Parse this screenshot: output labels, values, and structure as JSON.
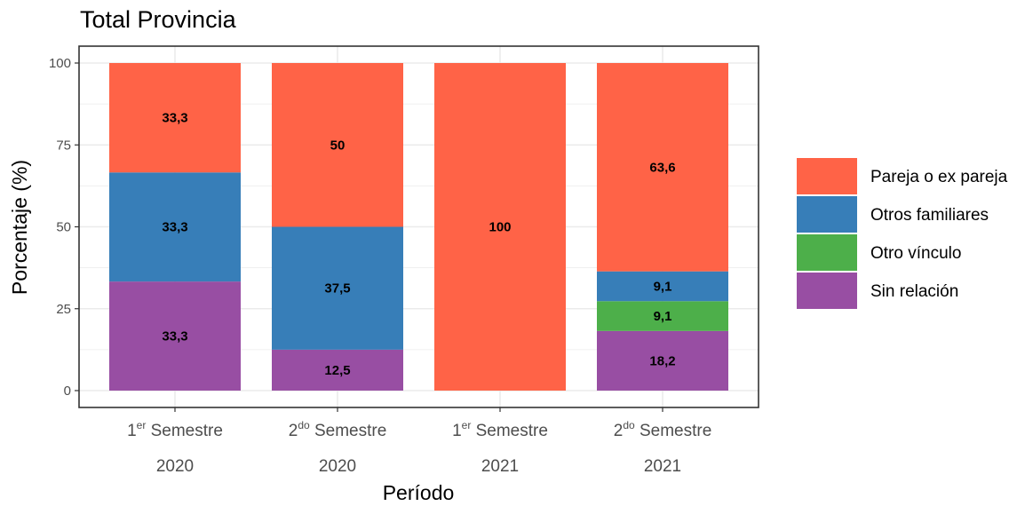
{
  "chart_data": {
    "type": "bar",
    "stacked": true,
    "title": "Total Provincia",
    "xlabel": "Período",
    "ylabel": "Porcentaje (%)",
    "ylim": [
      0,
      100
    ],
    "yticks": [
      "0",
      "25",
      "50",
      "75",
      "100"
    ],
    "grid": true,
    "legend_position": "right",
    "categories": [
      {
        "ordinal": "1",
        "sup": "er",
        "word": "Semestre",
        "year": "2020"
      },
      {
        "ordinal": "2",
        "sup": "do",
        "word": "Semestre",
        "year": "2020"
      },
      {
        "ordinal": "1",
        "sup": "er",
        "word": "Semestre",
        "year": "2021"
      },
      {
        "ordinal": "2",
        "sup": "do",
        "word": "Semestre",
        "year": "2021"
      }
    ],
    "series": [
      {
        "name": "Sin relación",
        "color": "#984EA3",
        "values": [
          33.3,
          12.5,
          0,
          18.2
        ],
        "labels": [
          "33,3",
          "12,5",
          "",
          "18,2"
        ]
      },
      {
        "name": "Otro vínculo",
        "color": "#4DAF4A",
        "values": [
          0,
          0,
          0,
          9.1
        ],
        "labels": [
          "",
          "",
          "",
          "9,1"
        ]
      },
      {
        "name": "Otros familiares",
        "color": "#377EB8",
        "values": [
          33.3,
          37.5,
          0,
          9.1
        ],
        "labels": [
          "33,3",
          "37,5",
          "",
          "9,1"
        ]
      },
      {
        "name": "Pareja o ex pareja",
        "color": "#FF6347",
        "values": [
          33.3,
          50,
          100,
          63.6
        ],
        "labels": [
          "33,3",
          "50",
          "100",
          "63,6"
        ]
      }
    ],
    "legend_order": [
      "Pareja o ex pareja",
      "Otros familiares",
      "Otro vínculo",
      "Sin relación"
    ]
  }
}
